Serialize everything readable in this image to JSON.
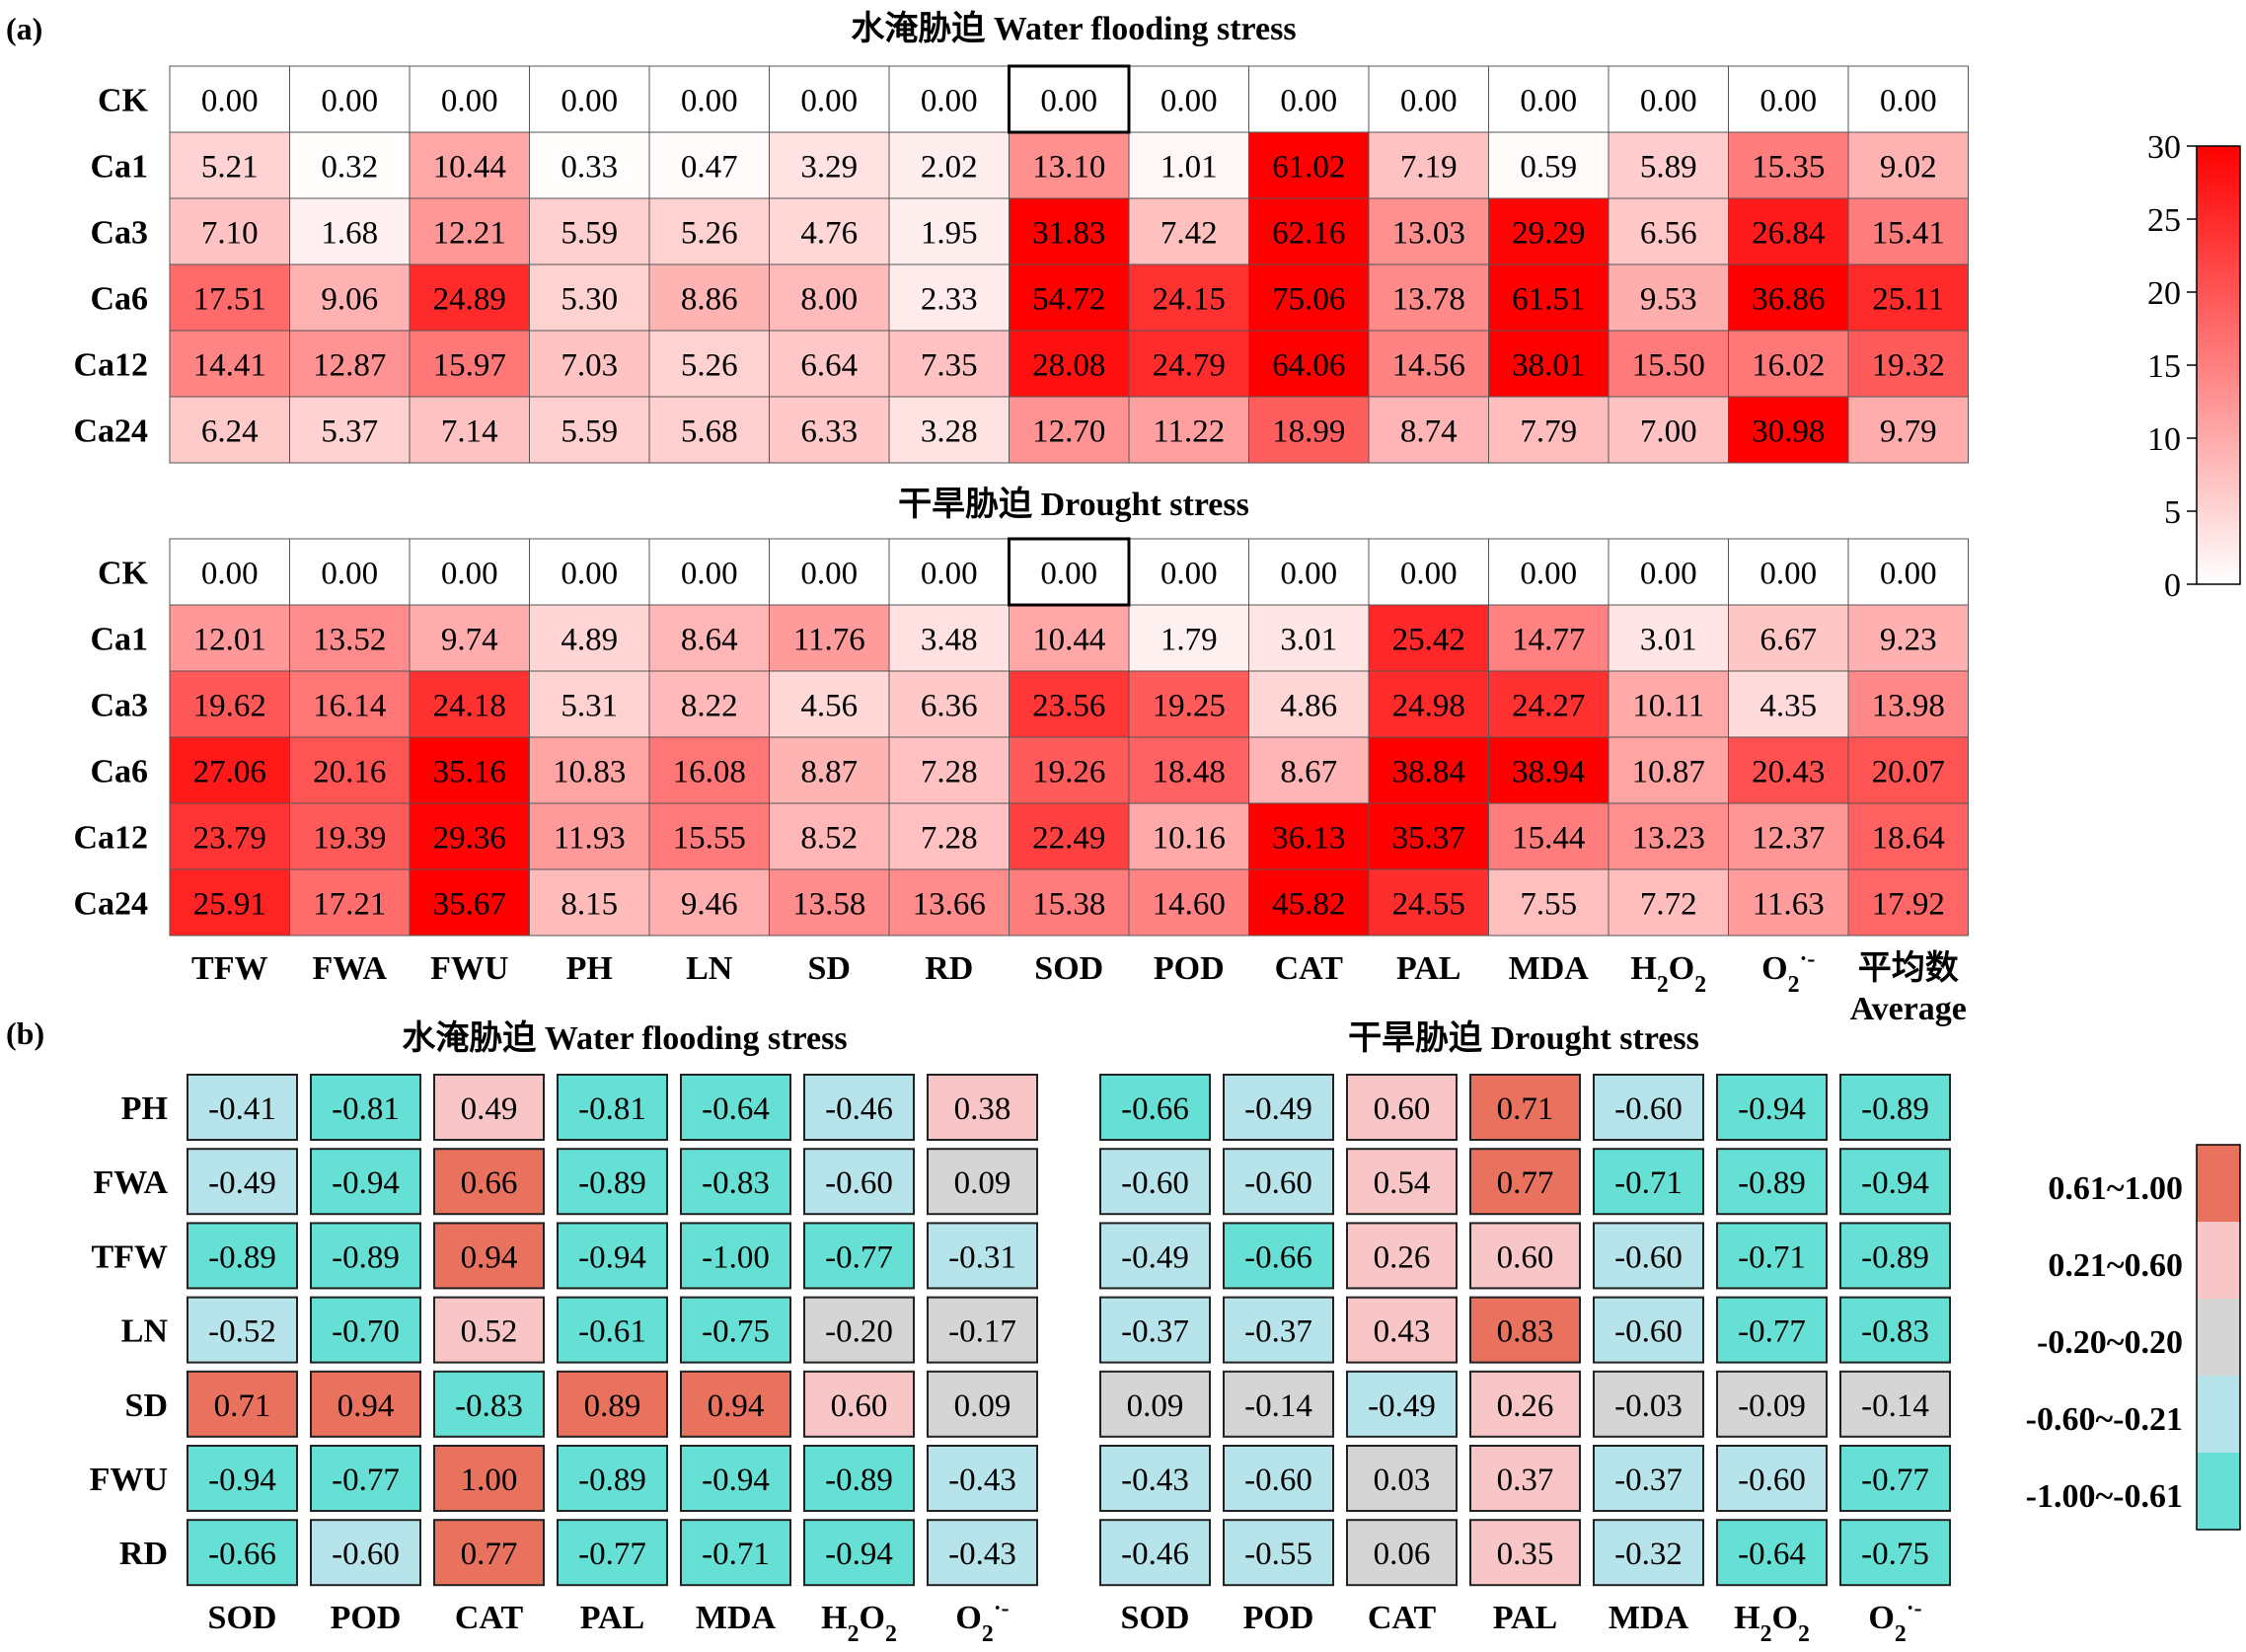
{
  "panel_a_label": "(a)",
  "panel_b_label": "(b)",
  "chart_data": [
    {
      "type": "heatmap",
      "title": "水淹胁迫 Water flooding stress",
      "rows": [
        "CK",
        "Ca1",
        "Ca3",
        "Ca6",
        "Ca12",
        "Ca24"
      ],
      "columns": [
        "TFW",
        "FWA",
        "FWU",
        "PH",
        "LN",
        "SD",
        "RD",
        "SOD",
        "POD",
        "CAT",
        "PAL",
        "MDA",
        "H2O2",
        "O2·-",
        "平均数 Average"
      ],
      "values": [
        [
          "0.00",
          "0.00",
          "0.00",
          "0.00",
          "0.00",
          "0.00",
          "0.00",
          "0.00",
          "0.00",
          "0.00",
          "0.00",
          "0.00",
          "0.00",
          "0.00",
          "0.00"
        ],
        [
          "5.21",
          "0.32",
          "10.44",
          "0.33",
          "0.47",
          "3.29",
          "2.02",
          "13.10",
          "1.01",
          "61.02",
          "7.19",
          "0.59",
          "5.89",
          "15.35",
          "9.02"
        ],
        [
          "7.10",
          "1.68",
          "12.21",
          "5.59",
          "5.26",
          "4.76",
          "1.95",
          "31.83",
          "7.42",
          "62.16",
          "13.03",
          "29.29",
          "6.56",
          "26.84",
          "15.41"
        ],
        [
          "17.51",
          "9.06",
          "24.89",
          "5.30",
          "8.86",
          "8.00",
          "2.33",
          "54.72",
          "24.15",
          "75.06",
          "13.78",
          "61.51",
          "9.53",
          "36.86",
          "25.11"
        ],
        [
          "14.41",
          "12.87",
          "15.97",
          "7.03",
          "5.26",
          "6.64",
          "7.35",
          "28.08",
          "24.79",
          "64.06",
          "14.56",
          "38.01",
          "15.50",
          "16.02",
          "19.32"
        ],
        [
          "6.24",
          "5.37",
          "7.14",
          "5.59",
          "5.68",
          "6.33",
          "3.28",
          "12.70",
          "11.22",
          "18.99",
          "8.74",
          "7.79",
          "7.00",
          "30.98",
          "9.79"
        ]
      ],
      "color_scale": {
        "min": 0,
        "max": 30,
        "low_color": "#ffffff",
        "high_color": "#ff0000"
      }
    },
    {
      "type": "heatmap",
      "title": "干旱胁迫 Drought stress",
      "rows": [
        "CK",
        "Ca1",
        "Ca3",
        "Ca6",
        "Ca12",
        "Ca24"
      ],
      "columns": [
        "TFW",
        "FWA",
        "FWU",
        "PH",
        "LN",
        "SD",
        "RD",
        "SOD",
        "POD",
        "CAT",
        "PAL",
        "MDA",
        "H2O2",
        "O2·-",
        "平均数 Average"
      ],
      "values": [
        [
          "0.00",
          "0.00",
          "0.00",
          "0.00",
          "0.00",
          "0.00",
          "0.00",
          "0.00",
          "0.00",
          "0.00",
          "0.00",
          "0.00",
          "0.00",
          "0.00",
          "0.00"
        ],
        [
          "12.01",
          "13.52",
          "9.74",
          "4.89",
          "8.64",
          "11.76",
          "3.48",
          "10.44",
          "1.79",
          "3.01",
          "25.42",
          "14.77",
          "3.01",
          "6.67",
          "9.23"
        ],
        [
          "19.62",
          "16.14",
          "24.18",
          "5.31",
          "8.22",
          "4.56",
          "6.36",
          "23.56",
          "19.25",
          "4.86",
          "24.98",
          "24.27",
          "10.11",
          "4.35",
          "13.98"
        ],
        [
          "27.06",
          "20.16",
          "35.16",
          "10.83",
          "16.08",
          "8.87",
          "7.28",
          "19.26",
          "18.48",
          "8.67",
          "38.84",
          "38.94",
          "10.87",
          "20.43",
          "20.07"
        ],
        [
          "23.79",
          "19.39",
          "29.36",
          "11.93",
          "15.55",
          "8.52",
          "7.28",
          "22.49",
          "10.16",
          "36.13",
          "35.37",
          "15.44",
          "13.23",
          "12.37",
          "18.64"
        ],
        [
          "25.91",
          "17.21",
          "35.67",
          "8.15",
          "9.46",
          "13.58",
          "13.66",
          "15.38",
          "14.60",
          "45.82",
          "24.55",
          "7.55",
          "7.72",
          "11.63",
          "17.92"
        ]
      ],
      "color_scale": {
        "min": 0,
        "max": 30,
        "low_color": "#ffffff",
        "high_color": "#ff0000"
      }
    },
    {
      "type": "heatmap",
      "title": "水淹胁迫 Water flooding stress",
      "rows": [
        "PH",
        "FWA",
        "TFW",
        "LN",
        "SD",
        "FWU",
        "RD"
      ],
      "columns": [
        "SOD",
        "POD",
        "CAT",
        "PAL",
        "MDA",
        "H2O2",
        "O2·-"
      ],
      "values": [
        [
          "-0.41",
          "-0.81",
          "0.49",
          "-0.81",
          "-0.64",
          "-0.46",
          "0.38"
        ],
        [
          "-0.49",
          "-0.94",
          "0.66",
          "-0.89",
          "-0.83",
          "-0.60",
          "0.09"
        ],
        [
          "-0.89",
          "-0.89",
          "0.94",
          "-0.94",
          "-1.00",
          "-0.77",
          "-0.31"
        ],
        [
          "-0.52",
          "-0.70",
          "0.52",
          "-0.61",
          "-0.75",
          "-0.20",
          "-0.17"
        ],
        [
          "0.71",
          "0.94",
          "-0.83",
          "0.89",
          "0.94",
          "0.60",
          "0.09"
        ],
        [
          "-0.94",
          "-0.77",
          "1.00",
          "-0.89",
          "-0.94",
          "-0.89",
          "-0.43"
        ],
        [
          "-0.66",
          "-0.60",
          "0.77",
          "-0.77",
          "-0.71",
          "-0.94",
          "-0.43"
        ]
      ]
    },
    {
      "type": "heatmap",
      "title": "干旱胁迫 Drought stress",
      "rows": [
        "PH",
        "FWA",
        "TFW",
        "LN",
        "SD",
        "FWU",
        "RD"
      ],
      "columns": [
        "SOD",
        "POD",
        "CAT",
        "PAL",
        "MDA",
        "H2O2",
        "O2·-"
      ],
      "values": [
        [
          "-0.66",
          "-0.49",
          "0.60",
          "0.71",
          "-0.60",
          "-0.94",
          "-0.89"
        ],
        [
          "-0.60",
          "-0.60",
          "0.54",
          "0.77",
          "-0.71",
          "-0.89",
          "-0.94"
        ],
        [
          "-0.49",
          "-0.66",
          "0.26",
          "0.60",
          "-0.60",
          "-0.71",
          "-0.89"
        ],
        [
          "-0.37",
          "-0.37",
          "0.43",
          "0.83",
          "-0.60",
          "-0.77",
          "-0.83"
        ],
        [
          "0.09",
          "-0.14",
          "-0.49",
          "0.26",
          "-0.03",
          "-0.09",
          "-0.14"
        ],
        [
          "-0.43",
          "-0.60",
          "0.03",
          "0.37",
          "-0.37",
          "-0.60",
          "-0.77"
        ],
        [
          "-0.46",
          "-0.55",
          "0.06",
          "0.35",
          "-0.32",
          "-0.64",
          "-0.75"
        ]
      ]
    }
  ],
  "colorbar_a": {
    "ticks": [
      "30",
      "25",
      "20",
      "15",
      "10",
      "5",
      "0"
    ]
  },
  "legend_b": {
    "classes": [
      {
        "label": "0.61~1.00",
        "color": "#e8725e"
      },
      {
        "label": "0.21~0.60",
        "color": "#f8c6c6"
      },
      {
        "label": "-0.20~0.20",
        "color": "#d5d5d5"
      },
      {
        "label": "-0.60~-0.21",
        "color": "#b7e4ea"
      },
      {
        "label": "-1.00~-0.61",
        "color": "#66e0d4"
      }
    ]
  }
}
